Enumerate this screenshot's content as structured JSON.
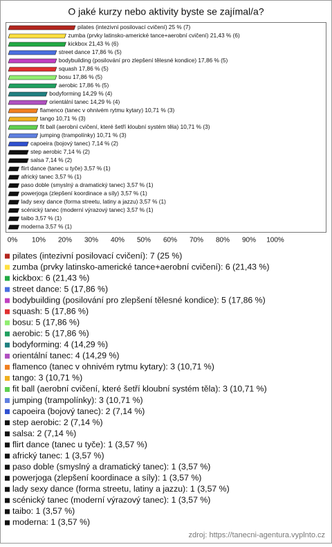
{
  "chart_data": {
    "type": "bar",
    "orientation": "horizontal",
    "title": "O jaké kurzy nebo aktivity byste se zajímal/a?",
    "source": "zdroj: https://tanecni-agentura.vyplnto.cz",
    "categories": [
      "pilates (intezivní posilovací cvičení)",
      "zumba (prvky latinsko-americké tance+aerobní cvičení)",
      "kickbox",
      "street dance",
      "bodybuilding (posilování pro zlepšení tělesné kondice)",
      "squash",
      "bosu",
      "aerobic",
      "bodyforming",
      "orientální tanec",
      "flamenco (tanec v ohnivém rytmu kytary)",
      "tango",
      "fit ball (aerobní cvičení, které šetří kloubní systém těla)",
      "jumping (trampolínky)",
      "capoeira (bojový tanec)",
      "step aerobic",
      "salsa",
      "flirt dance (tanec u tyče)",
      "africký tanec",
      "paso doble (smyslný a dramatický tanec)",
      "powerjoga (zlepšení koordinace a síly)",
      "lady sexy dance (forma streetu, latiny a jazzu)",
      "scénický tanec (moderní výrazový tanec)",
      "taibo",
      "moderna"
    ],
    "values": [
      25,
      21.43,
      21.43,
      17.86,
      17.86,
      17.86,
      17.86,
      17.86,
      14.29,
      14.29,
      10.71,
      10.71,
      10.71,
      10.71,
      7.14,
      7.14,
      7.14,
      3.57,
      3.57,
      3.57,
      3.57,
      3.57,
      3.57,
      3.57,
      3.57
    ],
    "value_labels": [
      "pilates (intezivní posilovací cvičení) 25 % (7)",
      "zumba (prvky latinsko-americké tance+aerobní cvičení) 21,43 % (6)",
      "kickbox 21,43 % (6)",
      "street dance 17,86 % (5)",
      "bodybuilding (posilování pro zlepšení tělesné kondice) 17,86 % (5)",
      "squash 17,86 % (5)",
      "bosu 17,86 % (5)",
      "aerobic 17,86 % (5)",
      "bodyforming 14,29 % (4)",
      "orientální tanec 14,29 % (4)",
      "flamenco (tanec v ohnivém rytmu kytary) 10,71 % (3)",
      "tango 10,71 % (3)",
      "fit ball (aerobní cvičení, které šetří kloubní systém těla) 10,71 % (3)",
      "jumping (trampolínky) 10,71 % (3)",
      "capoeira (bojový tanec) 7,14 % (2)",
      "step aerobic 7,14 % (2)",
      "salsa 7,14 % (2)",
      "flirt dance (tanec u tyče) 3,57 % (1)",
      "africký tanec 3,57 % (1)",
      "paso doble (smyslný a dramatický tanec) 3,57 % (1)",
      "powerjoga (zlepšení koordinace a síly) 3,57 % (1)",
      "lady sexy dance (forma streetu, latiny a jazzu) 3,57 % (1)",
      "scénický tanec (moderní výrazový tanec) 3,57 % (1)",
      "taibo 3,57 % (1)",
      "moderna 3,57 % (1)"
    ],
    "legend_labels": [
      "pilates (intezivní posilovací cvičení): 7 (25 %)",
      "zumba (prvky latinsko-americké tance+aerobní cvičení): 6 (21,43 %)",
      "kickbox: 6 (21,43 %)",
      "street dance: 5 (17,86 %)",
      "bodybuilding (posilování pro zlepšení tělesné kondice): 5 (17,86 %)",
      "squash: 5 (17,86 %)",
      "bosu: 5 (17,86 %)",
      "aerobic: 5 (17,86 %)",
      "bodyforming: 4 (14,29 %)",
      "orientální tanec: 4 (14,29 %)",
      "flamenco (tanec v ohnivém rytmu kytary): 3 (10,71 %)",
      "tango: 3 (10,71 %)",
      "fit ball (aerobní cvičení, které šetří kloubní systém těla): 3 (10,71 %)",
      "jumping (trampolínky): 3 (10,71 %)",
      "capoeira (bojový tanec): 2 (7,14 %)",
      "step aerobic: 2 (7,14 %)",
      "salsa: 2 (7,14 %)",
      "flirt dance (tanec u tyče): 1 (3,57 %)",
      "africký tanec: 1 (3,57 %)",
      "paso doble (smyslný a dramatický tanec): 1 (3,57 %)",
      "powerjoga (zlepšení koordinace a síly): 1 (3,57 %)",
      "lady sexy dance (forma streetu, latiny a jazzu): 1 (3,57 %)",
      "scénický tanec (moderní výrazový tanec): 1 (3,57 %)",
      "taibo: 1 (3,57 %)",
      "moderna: 1 (3,57 %)"
    ],
    "colors": [
      "#b3261e",
      "#ffe040",
      "#22aa44",
      "#4a6fe0",
      "#c040c0",
      "#e03030",
      "#90ee70",
      "#20a060",
      "#208080",
      "#b050c0",
      "#f08020",
      "#f0b020",
      "#60d050",
      "#6080e0",
      "#3050d0",
      "#111111",
      "#111111",
      "#111111",
      "#111111",
      "#111111",
      "#111111",
      "#111111",
      "#111111",
      "#111111",
      "#111111"
    ],
    "xlim": [
      0,
      100
    ],
    "xticks": [
      {
        "value": 0,
        "label": "0%"
      },
      {
        "value": 10,
        "label": "10%"
      },
      {
        "value": 20,
        "label": "20%"
      },
      {
        "value": 30,
        "label": "30%"
      },
      {
        "value": 40,
        "label": "40%"
      },
      {
        "value": 50,
        "label": "50%"
      },
      {
        "value": 60,
        "label": "60%"
      },
      {
        "value": 70,
        "label": "70%"
      },
      {
        "value": 80,
        "label": "80%"
      },
      {
        "value": 90,
        "label": "90%"
      },
      {
        "value": 100,
        "label": "100%"
      }
    ]
  }
}
